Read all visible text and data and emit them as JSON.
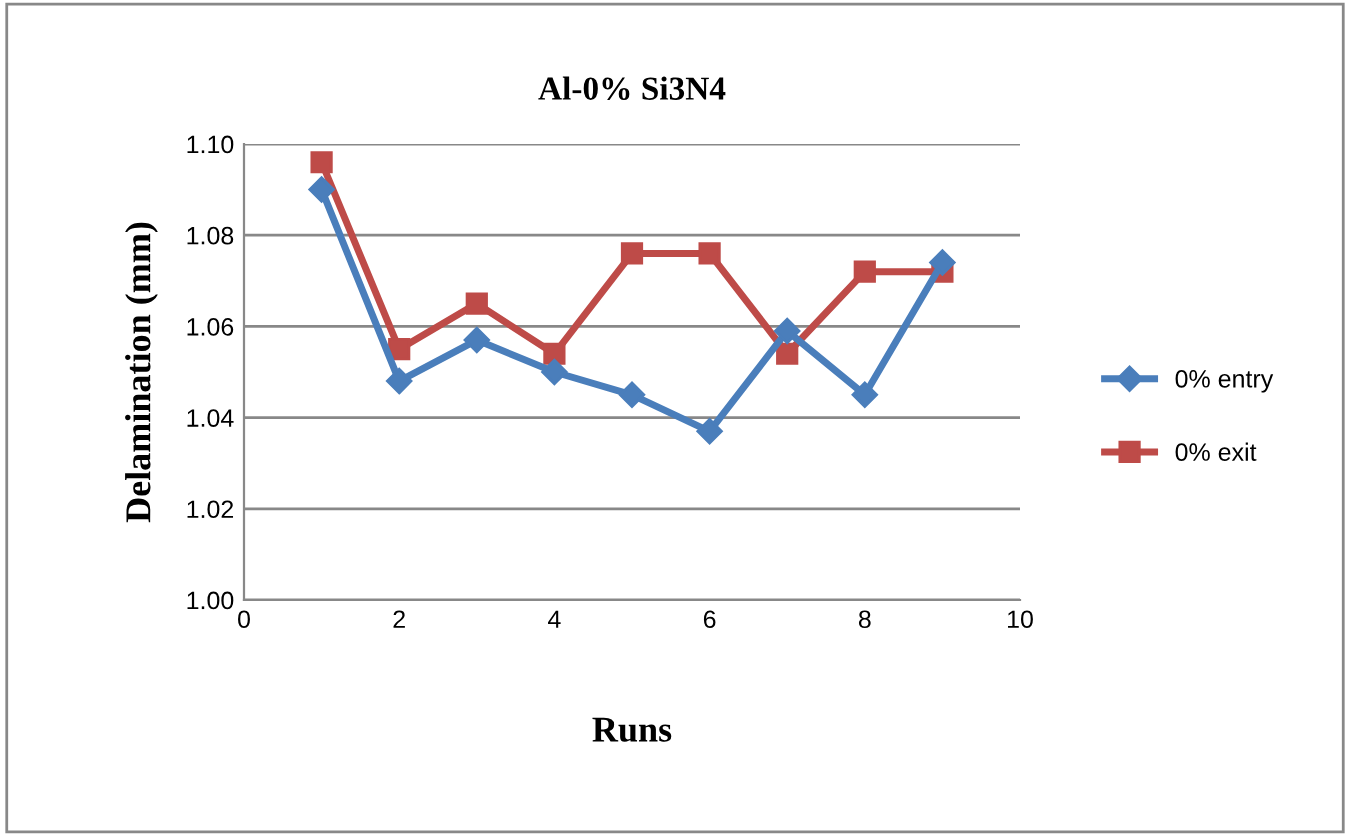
{
  "chart_data": {
    "type": "line",
    "title": "Al-0% Si3N4",
    "xlabel": "Runs",
    "ylabel": "Delamination (mm)",
    "x": [
      1,
      2,
      3,
      4,
      5,
      6,
      7,
      8,
      9
    ],
    "series": [
      {
        "name": "0% entry",
        "color": "#4a7ebb",
        "marker": "diamond",
        "values": [
          1.09,
          1.048,
          1.057,
          1.05,
          1.045,
          1.037,
          1.059,
          1.045,
          1.074
        ]
      },
      {
        "name": "0% exit",
        "color": "#be4b48",
        "marker": "square",
        "values": [
          1.096,
          1.055,
          1.065,
          1.054,
          1.076,
          1.076,
          1.054,
          1.072,
          1.072
        ]
      }
    ],
    "xlim": [
      0,
      10
    ],
    "xticks": [
      0,
      2,
      4,
      6,
      8,
      10
    ],
    "ylim": [
      1.0,
      1.1
    ],
    "yticks": [
      {
        "value": 1.0,
        "label": "1.00"
      },
      {
        "value": 1.02,
        "label": "1.02"
      },
      {
        "value": 1.04,
        "label": "1.04"
      },
      {
        "value": 1.06,
        "label": "1.06"
      },
      {
        "value": 1.08,
        "label": "1.08"
      },
      {
        "value": 1.1,
        "label": "1.10"
      }
    ],
    "grid": "y",
    "legend": "right"
  }
}
